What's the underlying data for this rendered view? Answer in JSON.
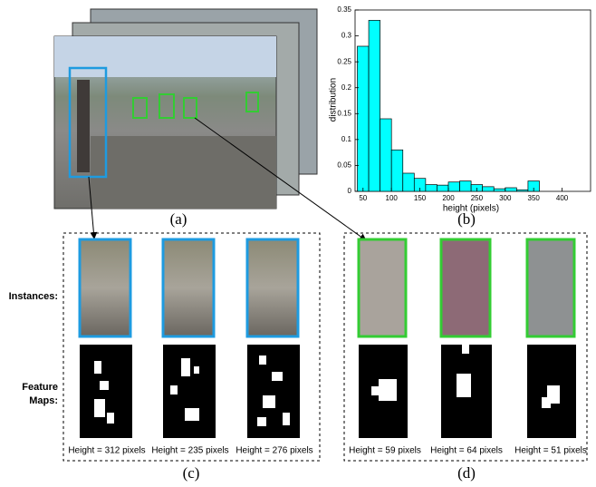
{
  "chart_data": {
    "type": "histogram",
    "xlabel": "height (pixels)",
    "ylabel": "distribution",
    "bins": [
      40,
      60,
      80,
      100,
      120,
      140,
      160,
      180,
      200,
      220,
      240,
      260,
      280,
      300,
      320,
      340,
      360
    ],
    "values": [
      0.28,
      0.33,
      0.14,
      0.08,
      0.035,
      0.025,
      0.013,
      0.012,
      0.018,
      0.02,
      0.013,
      0.009,
      0.005,
      0.007,
      0.003,
      0.02
    ],
    "color": "#00ffff",
    "xlim": [
      36,
      450
    ],
    "ylim": [
      0,
      0.35
    ],
    "xticks": [
      50,
      100,
      150,
      200,
      250,
      300,
      350,
      400
    ],
    "yticks": [
      0,
      0.05,
      0.1,
      0.15,
      0.2,
      0.25,
      0.3,
      0.35
    ]
  },
  "panel_labels": [
    "(a)",
    "(b)",
    "(c)",
    "(d)"
  ],
  "row_labels": {
    "instances": "Instances:",
    "feature_maps": "Feature Maps:"
  },
  "captions_c": [
    "Height = 312 pixels",
    "Height = 235 pixels",
    "Height = 276 pixels"
  ],
  "captions_d": [
    "Height = 59 pixels",
    "Height = 64 pixels",
    "Height = 51 pixels"
  ]
}
